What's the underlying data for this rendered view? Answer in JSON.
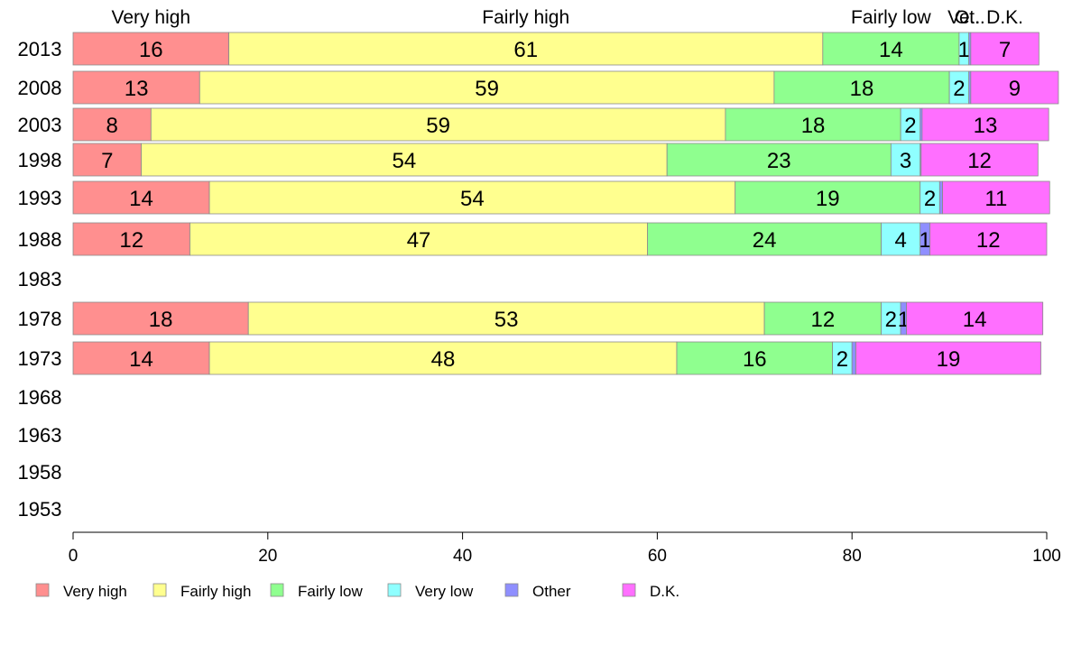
{
  "chart_data": {
    "type": "bar",
    "orientation": "horizontal",
    "stacked": true,
    "categories": [
      "2013",
      "2008",
      "2003",
      "1998",
      "1993",
      "1988",
      "1983",
      "1978",
      "1973",
      "1968",
      "1963",
      "1958",
      "1953"
    ],
    "series": [
      {
        "name": "Very high",
        "color": "#ff8f8f",
        "values": [
          16,
          13,
          8,
          7,
          14,
          12,
          null,
          18,
          14,
          null,
          null,
          null,
          null
        ]
      },
      {
        "name": "Fairly high",
        "color": "#ffff8f",
        "values": [
          61,
          59,
          59,
          54,
          54,
          47,
          null,
          53,
          48,
          null,
          null,
          null,
          null
        ]
      },
      {
        "name": "Fairly low",
        "color": "#8fff8f",
        "values": [
          14,
          18,
          18,
          23,
          19,
          24,
          null,
          12,
          16,
          null,
          null,
          null,
          null
        ]
      },
      {
        "name": "Very low",
        "color": "#8fffff",
        "values": [
          1,
          2,
          2,
          3,
          2,
          4,
          null,
          2,
          2,
          null,
          null,
          null,
          null
        ]
      },
      {
        "name": "Other",
        "color": "#8f8fff",
        "values": [
          0.2,
          0.2,
          0.2,
          0.1,
          0.3,
          1,
          null,
          0.6,
          0.4,
          null,
          null,
          null,
          null
        ]
      },
      {
        "name": "D.K.",
        "color": "#ff6fff",
        "values": [
          7,
          9,
          13,
          12,
          11,
          12,
          null,
          14,
          19,
          null,
          null,
          null,
          null
        ]
      }
    ],
    "segment_labels": [
      [
        "16",
        "61",
        "14",
        "1",
        "",
        "7"
      ],
      [
        "13",
        "59",
        "18",
        "2",
        "",
        "9"
      ],
      [
        "8",
        "59",
        "18",
        "2",
        "",
        "13"
      ],
      [
        "7",
        "54",
        "23",
        "3",
        "",
        "12"
      ],
      [
        "14",
        "54",
        "19",
        "2",
        "",
        "11"
      ],
      [
        "12",
        "47",
        "24",
        "4",
        "1",
        "12"
      ],
      [],
      [
        "18",
        "53",
        "12",
        "2",
        "1",
        "14"
      ],
      [
        "14",
        "48",
        "16",
        "2",
        "",
        "19"
      ],
      [],
      [],
      [],
      []
    ],
    "top_labels": [
      "Very high",
      "Fairly high",
      "Fairly low",
      "Ve..",
      "Ot..",
      "D.K."
    ],
    "xlim": [
      0,
      100
    ],
    "xticks": [
      0,
      20,
      40,
      60,
      80,
      100
    ],
    "legend_position": "bottom",
    "grid": false
  }
}
